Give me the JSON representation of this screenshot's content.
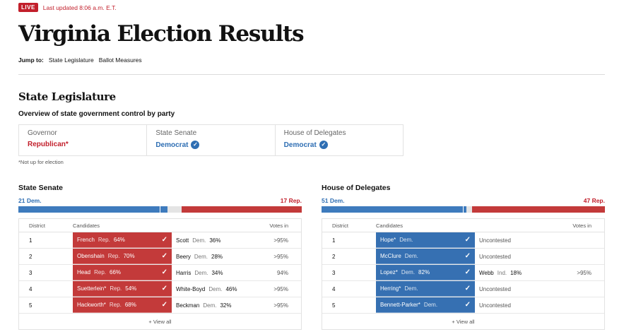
{
  "header": {
    "live_label": "LIVE",
    "updated": "Last updated 8:06 a.m. E.T.",
    "title": "Virginia Election Results"
  },
  "jump": {
    "label": "Jump to:",
    "links": [
      "State Legislature",
      "Ballot Measures"
    ]
  },
  "legislature": {
    "title": "State Legislature",
    "overview_title": "Overview of state government control by party",
    "control": [
      {
        "office": "Governor",
        "party": "Republican*",
        "status": "rep",
        "check": false
      },
      {
        "office": "State Senate",
        "party": "Democrat",
        "status": "dem",
        "check": true
      },
      {
        "office": "House of Delegates",
        "party": "Democrat",
        "status": "dem",
        "check": true
      }
    ],
    "footnote": "*Not up for election"
  },
  "colors": {
    "dem": "#3e7bbd",
    "rep": "#c33a3a",
    "undecided": "#e4e4e4"
  },
  "icons": {
    "check": "check-icon",
    "check_circle": "check-circle-icon"
  },
  "chambers": [
    {
      "title": "State Senate",
      "dem_label": "21 Dem.",
      "rep_label": "17 Rep.",
      "seats": {
        "dem": 21,
        "rep": 17,
        "total": 40
      },
      "columns": {
        "district": "District",
        "candidates": "Candidates",
        "votes": "Votes in"
      },
      "rows": [
        {
          "district": "1",
          "winner": "French",
          "winner_party": "Rep.",
          "winner_pct": "64%",
          "winner_color": "rep",
          "opponent": "Scott",
          "opponent_party": "Dem.",
          "opponent_pct": "36%",
          "votes": ">95%"
        },
        {
          "district": "2",
          "winner": "Obenshain",
          "winner_party": "Rep.",
          "winner_pct": "70%",
          "winner_color": "rep",
          "opponent": "Beery",
          "opponent_party": "Dem.",
          "opponent_pct": "28%",
          "votes": ">95%"
        },
        {
          "district": "3",
          "winner": "Head",
          "winner_party": "Rep.",
          "winner_pct": "66%",
          "winner_color": "rep",
          "opponent": "Harris",
          "opponent_party": "Dem.",
          "opponent_pct": "34%",
          "votes": "94%"
        },
        {
          "district": "4",
          "winner": "Suetterlein*",
          "winner_party": "Rep.",
          "winner_pct": "54%",
          "winner_color": "rep",
          "opponent": "White-Boyd",
          "opponent_party": "Dem.",
          "opponent_pct": "46%",
          "votes": ">95%"
        },
        {
          "district": "5",
          "winner": "Hackworth*",
          "winner_party": "Rep.",
          "winner_pct": "68%",
          "winner_color": "rep",
          "opponent": "Beckman",
          "opponent_party": "Dem.",
          "opponent_pct": "32%",
          "votes": ">95%"
        }
      ],
      "view_all": "+ View all"
    },
    {
      "title": "House of Delegates",
      "dem_label": "51 Dem.",
      "rep_label": "47 Rep.",
      "seats": {
        "dem": 51,
        "rep": 47,
        "total": 100
      },
      "columns": {
        "district": "District",
        "candidates": "Candidates",
        "votes": "Votes in"
      },
      "rows": [
        {
          "district": "1",
          "winner": "Hope*",
          "winner_party": "Dem.",
          "winner_pct": "",
          "winner_color": "dem",
          "uncontested": "Uncontested",
          "votes": ""
        },
        {
          "district": "2",
          "winner": "McClure",
          "winner_party": "Dem.",
          "winner_pct": "",
          "winner_color": "dem",
          "uncontested": "Uncontested",
          "votes": ""
        },
        {
          "district": "3",
          "winner": "Lopez*",
          "winner_party": "Dem.",
          "winner_pct": "82%",
          "winner_color": "dem",
          "opponent": "Webb",
          "opponent_party": "Ind.",
          "opponent_pct": "18%",
          "votes": ">95%"
        },
        {
          "district": "4",
          "winner": "Herring*",
          "winner_party": "Dem.",
          "winner_pct": "",
          "winner_color": "dem",
          "uncontested": "Uncontested",
          "votes": ""
        },
        {
          "district": "5",
          "winner": "Bennett-Parker*",
          "winner_party": "Dem.",
          "winner_pct": "",
          "winner_color": "dem",
          "uncontested": "Uncontested",
          "votes": ""
        }
      ],
      "view_all": "+ View all"
    }
  ]
}
